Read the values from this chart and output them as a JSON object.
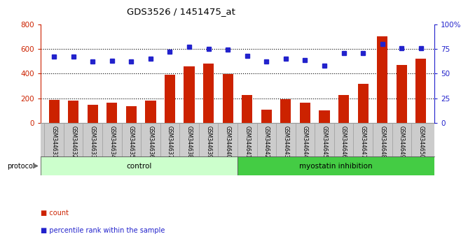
{
  "title": "GDS3526 / 1451475_at",
  "samples": [
    "GSM344631",
    "GSM344632",
    "GSM344633",
    "GSM344634",
    "GSM344635",
    "GSM344636",
    "GSM344637",
    "GSM344638",
    "GSM344639",
    "GSM344640",
    "GSM344641",
    "GSM344642",
    "GSM344643",
    "GSM344644",
    "GSM344645",
    "GSM344646",
    "GSM344647",
    "GSM344648",
    "GSM344649",
    "GSM344650"
  ],
  "counts": [
    185,
    180,
    148,
    162,
    138,
    182,
    390,
    460,
    480,
    395,
    225,
    110,
    195,
    162,
    100,
    225,
    315,
    700,
    470,
    520
  ],
  "percentiles": [
    67,
    67,
    62,
    63,
    62,
    65,
    72,
    77,
    75,
    74,
    68,
    62,
    65,
    64,
    58,
    71,
    71,
    80,
    76,
    76
  ],
  "control_count": 10,
  "ylim_left": [
    0,
    800
  ],
  "ylim_right": [
    0,
    100
  ],
  "yticks_left": [
    0,
    200,
    400,
    600,
    800
  ],
  "yticks_right": [
    0,
    25,
    50,
    75,
    100
  ],
  "bar_color": "#cc2200",
  "dot_color": "#2222cc",
  "control_color": "#ccffcc",
  "myostatin_color": "#44cc44",
  "xticklabel_bg": "#cccccc",
  "plot_bg": "#ffffff",
  "control_label": "control",
  "myostatin_label": "myostatin inhibition",
  "protocol_label": "protocol",
  "legend_count": "count",
  "legend_pct": "percentile rank within the sample"
}
